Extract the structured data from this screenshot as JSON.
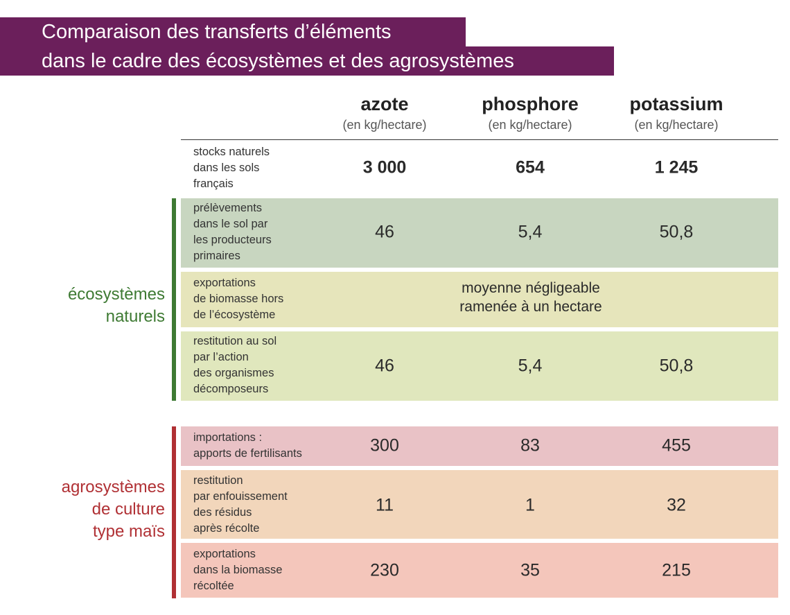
{
  "title": {
    "line1": "Comparaison des transferts d’éléments",
    "line2": "dans le cadre des écosystèmes et des agrosystèmes"
  },
  "columns": [
    {
      "name": "azote",
      "unit": "(en kg/hectare)"
    },
    {
      "name": "phosphore",
      "unit": "(en kg/hectare)"
    },
    {
      "name": "potassium",
      "unit": "(en kg/hectare)"
    }
  ],
  "rows": {
    "stocks": {
      "label": "stocks naturels\ndans les sols\nfrançais",
      "values": [
        "3 000",
        "654",
        "1 245"
      ]
    },
    "prelevements": {
      "label": "prélèvements\ndans le sol par\nles producteurs\nprimaires",
      "values": [
        "46",
        "5,4",
        "50,8"
      ]
    },
    "exportations_nat": {
      "label": "exportations\nde biomasse hors\nde l’écosystème",
      "merged": "moyenne négligeable\nramenée à un hectare"
    },
    "restitution_nat": {
      "label": "restitution au sol\npar l’action\ndes organismes\ndécomposeurs",
      "values": [
        "46",
        "5,4",
        "50,8"
      ]
    },
    "importations": {
      "label": "importations :\napports de fertilisants",
      "values": [
        "300",
        "83",
        "455"
      ]
    },
    "restitution_agro": {
      "label": "restitution\npar enfouissement\ndes résidus\naprès récolte",
      "values": [
        "11",
        "1",
        "32"
      ]
    },
    "exportations_agro": {
      "label": "exportations\ndans la biomasse\nrécoltée",
      "values": [
        "230",
        "35",
        "215"
      ]
    }
  },
  "groups": {
    "eco": "écosystèmes\nnaturels",
    "agro": "agrosystèmes\nde culture\ntype maïs"
  },
  "colors": {
    "title_bg": "#6b1f5b",
    "eco_accent": "#3e7a33",
    "agro_accent": "#b03034"
  }
}
